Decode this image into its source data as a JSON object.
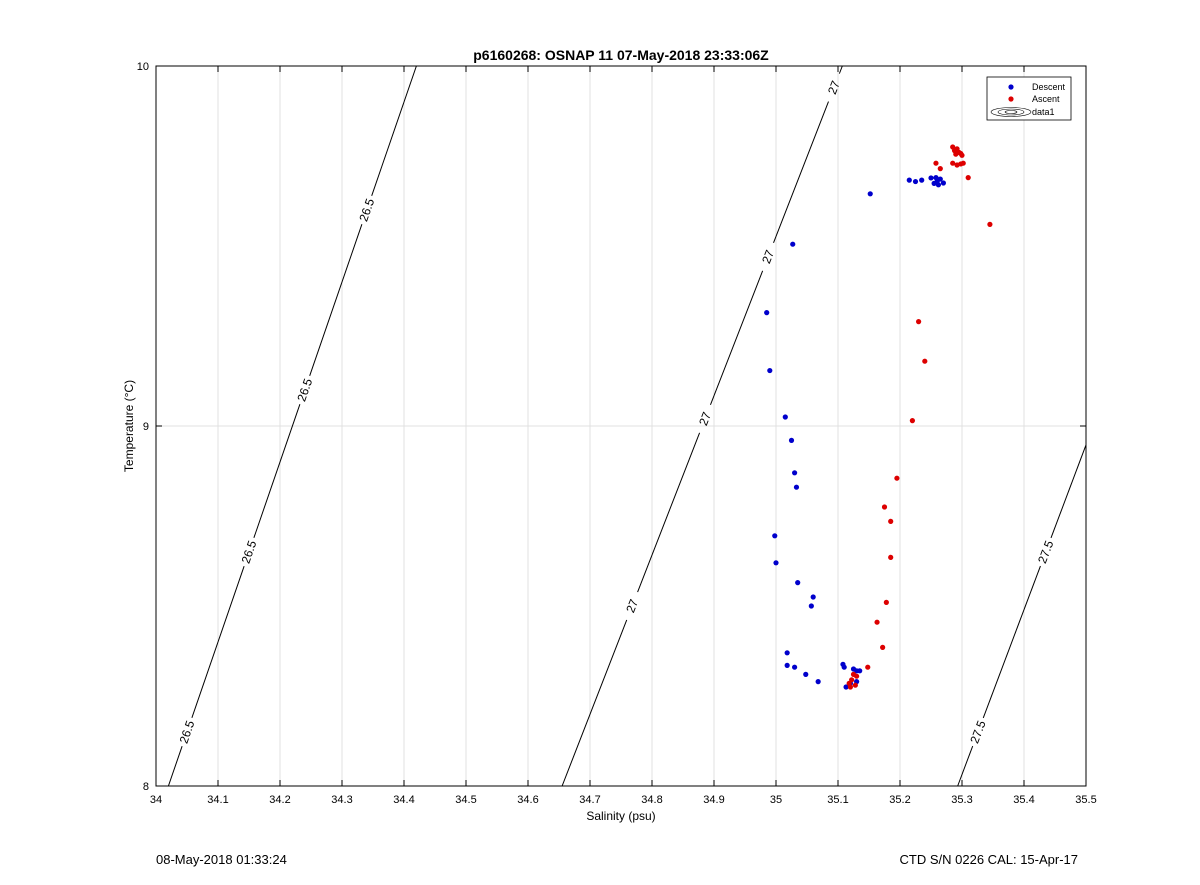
{
  "chart_data": {
    "type": "scatter",
    "title": "p6160268: OSNAP 11 07-May-2018 23:33:06Z",
    "xlabel": "Salinity (psu)",
    "ylabel": "Temperature (°C)",
    "xlim": [
      34,
      35.5
    ],
    "ylim": [
      8,
      10
    ],
    "xticks": [
      "34",
      "34.1",
      "34.2",
      "34.3",
      "34.4",
      "34.5",
      "34.6",
      "34.7",
      "34.8",
      "34.9",
      "35",
      "35.1",
      "35.2",
      "35.3",
      "35.4",
      "35.5"
    ],
    "xtick_values": [
      34,
      34.1,
      34.2,
      34.3,
      34.4,
      34.5,
      34.6,
      34.7,
      34.8,
      34.9,
      35,
      35.1,
      35.2,
      35.3,
      35.4,
      35.5
    ],
    "yticks": [
      "8",
      "9",
      "10"
    ],
    "ytick_values": [
      8,
      9,
      10
    ],
    "grid": true,
    "legend_position": "top-right",
    "legend": [
      "Descent",
      "Ascent",
      "data1"
    ],
    "series": [
      {
        "name": "Descent",
        "color": "#0000cc",
        "points": [
          [
            35.152,
            9.645
          ],
          [
            35.215,
            9.683
          ],
          [
            35.225,
            9.679
          ],
          [
            35.235,
            9.683
          ],
          [
            35.25,
            9.689
          ],
          [
            35.255,
            9.674
          ],
          [
            35.26,
            9.68
          ],
          [
            35.265,
            9.686
          ],
          [
            35.27,
            9.675
          ],
          [
            35.258,
            9.69
          ],
          [
            35.262,
            9.67
          ],
          [
            35.027,
            9.505
          ],
          [
            34.985,
            9.315
          ],
          [
            34.99,
            9.154
          ],
          [
            35.015,
            9.025
          ],
          [
            35.025,
            8.96
          ],
          [
            35.03,
            8.87
          ],
          [
            35.033,
            8.83
          ],
          [
            34.998,
            8.695
          ],
          [
            35.0,
            8.62
          ],
          [
            35.035,
            8.565
          ],
          [
            35.06,
            8.525
          ],
          [
            35.057,
            8.5
          ],
          [
            35.018,
            8.37
          ],
          [
            35.018,
            8.335
          ],
          [
            35.03,
            8.33
          ],
          [
            35.048,
            8.31
          ],
          [
            35.068,
            8.29
          ],
          [
            35.108,
            8.338
          ],
          [
            35.11,
            8.33
          ],
          [
            35.125,
            8.325
          ],
          [
            35.13,
            8.32
          ],
          [
            35.135,
            8.32
          ],
          [
            35.13,
            8.29
          ],
          [
            35.113,
            8.275
          ],
          [
            35.12,
            8.285
          ]
        ]
      },
      {
        "name": "Ascent",
        "color": "#dd0000",
        "points": [
          [
            35.285,
            9.775
          ],
          [
            35.288,
            9.765
          ],
          [
            35.292,
            9.77
          ],
          [
            35.29,
            9.755
          ],
          [
            35.295,
            9.76
          ],
          [
            35.298,
            9.757
          ],
          [
            35.3,
            9.752
          ],
          [
            35.285,
            9.73
          ],
          [
            35.292,
            9.725
          ],
          [
            35.298,
            9.728
          ],
          [
            35.302,
            9.73
          ],
          [
            35.258,
            9.73
          ],
          [
            35.265,
            9.715
          ],
          [
            35.31,
            9.69
          ],
          [
            35.345,
            9.56
          ],
          [
            35.23,
            9.29
          ],
          [
            35.24,
            9.18
          ],
          [
            35.22,
            9.015
          ],
          [
            35.195,
            8.855
          ],
          [
            35.175,
            8.775
          ],
          [
            35.185,
            8.735
          ],
          [
            35.185,
            8.635
          ],
          [
            35.178,
            8.51
          ],
          [
            35.163,
            8.455
          ],
          [
            35.172,
            8.385
          ],
          [
            35.148,
            8.33
          ],
          [
            35.13,
            8.305
          ],
          [
            35.125,
            8.31
          ],
          [
            35.122,
            8.295
          ],
          [
            35.118,
            8.285
          ],
          [
            35.128,
            8.28
          ],
          [
            35.12,
            8.275
          ]
        ]
      }
    ],
    "isopycnals": [
      {
        "label": "26.5",
        "x_at_8": 34.02,
        "x_at_10": 34.42,
        "label_y": [
          8.15,
          8.65,
          9.1,
          9.6
        ]
      },
      {
        "label": "27",
        "x_at_8": 34.655,
        "x_at_10": 35.107,
        "label_y": [
          8.5,
          9.02,
          9.47,
          9.94
        ]
      },
      {
        "label": "27.5",
        "x_at_8": 35.293,
        "x_at_10": 35.73,
        "label_y": [
          8.15,
          8.65
        ]
      }
    ]
  },
  "footer": {
    "timestamp": "08-May-2018 01:33:24",
    "instrument": "CTD S/N 0226  CAL: 15-Apr-17"
  }
}
